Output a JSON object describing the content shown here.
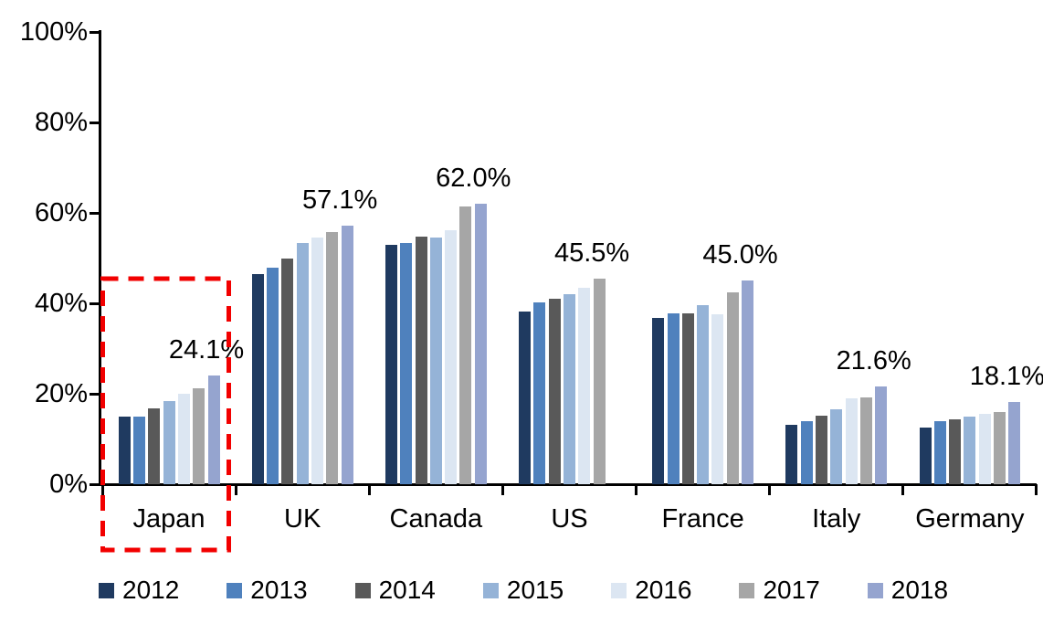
{
  "chart_data": {
    "type": "bar",
    "title": "",
    "xlabel": "",
    "ylabel": "",
    "ylim": [
      0,
      100
    ],
    "grid": false,
    "y_ticks": [
      "0%",
      "20%",
      "40%",
      "60%",
      "80%",
      "100%"
    ],
    "categories": [
      "Japan",
      "UK",
      "Canada",
      "US",
      "France",
      "Italy",
      "Germany"
    ],
    "series": [
      {
        "name": "2012",
        "color": "#1F3A60",
        "values": [
          14.9,
          46.4,
          53.0,
          38.2,
          36.8,
          13.2,
          12.5
        ]
      },
      {
        "name": "2013",
        "color": "#4F81BD",
        "values": [
          15.0,
          47.9,
          53.4,
          40.2,
          37.8,
          13.9,
          13.9
        ]
      },
      {
        "name": "2014",
        "color": "#595959",
        "values": [
          16.8,
          50.0,
          54.8,
          41.0,
          37.7,
          15.1,
          14.3
        ]
      },
      {
        "name": "2015",
        "color": "#95B3D7",
        "values": [
          18.3,
          53.4,
          54.6,
          42.0,
          39.5,
          16.6,
          14.9
        ]
      },
      {
        "name": "2016",
        "color": "#DCE6F2",
        "values": [
          20.0,
          54.5,
          56.1,
          43.5,
          37.5,
          18.9,
          15.5
        ]
      },
      {
        "name": "2017",
        "color": "#A6A6A6",
        "values": [
          21.2,
          55.8,
          61.5,
          45.5,
          42.4,
          19.1,
          16.0
        ]
      },
      {
        "name": "2018",
        "color": "#95A4CF",
        "values": [
          24.1,
          57.1,
          62.0,
          null,
          45.0,
          21.6,
          18.1
        ]
      }
    ],
    "data_labels": [
      "24.1%",
      "57.1%",
      "62.0%",
      "45.5%",
      "45.0%",
      "21.6%",
      "18.1%"
    ],
    "legend_position": "bottom",
    "legend_labels": [
      "2012",
      "2013",
      "2014",
      "2015",
      "2016",
      "2017",
      "2018"
    ],
    "annotation": {
      "type": "dashed-rectangle",
      "highlighted_category": "Japan",
      "color": "#F20000"
    },
    "colors": {
      "axis": "#000000",
      "background": "#FFFFFF",
      "text": "#000000"
    }
  }
}
